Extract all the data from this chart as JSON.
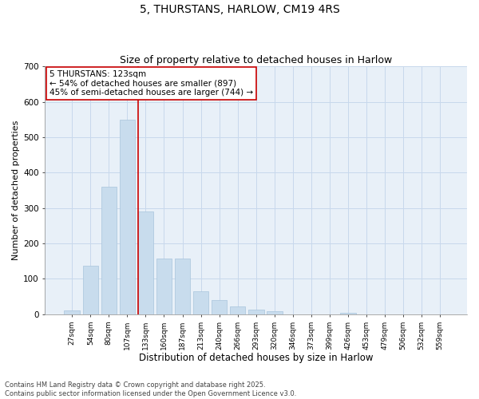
{
  "title_line1": "5, THURSTANS, HARLOW, CM19 4RS",
  "title_line2": "Size of property relative to detached houses in Harlow",
  "xlabel": "Distribution of detached houses by size in Harlow",
  "ylabel": "Number of detached properties",
  "categories": [
    "27sqm",
    "54sqm",
    "80sqm",
    "107sqm",
    "133sqm",
    "160sqm",
    "187sqm",
    "213sqm",
    "240sqm",
    "266sqm",
    "293sqm",
    "320sqm",
    "346sqm",
    "373sqm",
    "399sqm",
    "426sqm",
    "453sqm",
    "479sqm",
    "506sqm",
    "532sqm",
    "559sqm"
  ],
  "values": [
    10,
    137,
    360,
    550,
    290,
    158,
    158,
    65,
    40,
    22,
    14,
    8,
    0,
    0,
    0,
    4,
    0,
    0,
    0,
    0,
    0
  ],
  "bar_color": "#c8dced",
  "bar_edge_color": "#a8c4dc",
  "vline_x_index": 4,
  "vline_color": "#cc0000",
  "annotation_text": "5 THURSTANS: 123sqm\n← 54% of detached houses are smaller (897)\n45% of semi-detached houses are larger (744) →",
  "annotation_box_color": "#ffffff",
  "annotation_box_edge": "#cc0000",
  "annotation_fontsize": 7.5,
  "ylim": [
    0,
    700
  ],
  "yticks": [
    0,
    100,
    200,
    300,
    400,
    500,
    600,
    700
  ],
  "grid_color": "#c8d8ec",
  "background_color": "#e8f0f8",
  "footnote": "Contains HM Land Registry data © Crown copyright and database right 2025.\nContains public sector information licensed under the Open Government Licence v3.0.",
  "title_fontsize": 10,
  "subtitle_fontsize": 9,
  "xlabel_fontsize": 8.5,
  "ylabel_fontsize": 8
}
